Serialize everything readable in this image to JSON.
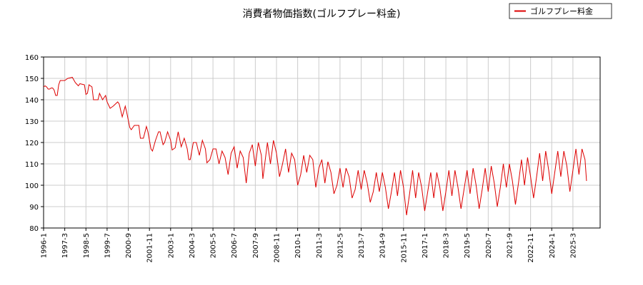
{
  "chart_data": {
    "type": "line",
    "title": "消費者物価指数(ゴルフプレー料金)",
    "legend_position": "top-right",
    "grid": true,
    "ylim": [
      80,
      160
    ],
    "yticks": [
      80,
      90,
      100,
      110,
      120,
      130,
      140,
      150,
      160
    ],
    "xlim": [
      "1996-01",
      "2026-09"
    ],
    "xticks": [
      "1996-1",
      "1997-3",
      "1998-5",
      "1999-7",
      "2000-9",
      "2001-11",
      "2003-1",
      "2004-3",
      "2005-5",
      "2006-7",
      "2007-9",
      "2008-11",
      "2010-1",
      "2011-3",
      "2012-5",
      "2013-7",
      "2014-9",
      "2015-11",
      "2017-1",
      "2018-3",
      "2019-5",
      "2020-7",
      "2021-9",
      "2022-11",
      "2024-1",
      "2025-3"
    ],
    "line_color": "#dd0000",
    "series": [
      {
        "name": "ゴルフプレー料金",
        "anchors": [
          [
            "1996-01",
            146
          ],
          [
            "1996-02",
            146.5
          ],
          [
            "1996-03",
            146
          ],
          [
            "1996-04",
            145
          ],
          [
            "1996-05",
            145
          ],
          [
            "1996-06",
            145.5
          ],
          [
            "1996-07",
            145.5
          ],
          [
            "1996-08",
            144.5
          ],
          [
            "1996-09",
            142
          ],
          [
            "1996-10",
            142
          ],
          [
            "1996-11",
            147
          ],
          [
            "1996-12",
            149
          ],
          [
            "1997-03",
            149
          ],
          [
            "1997-05",
            150
          ],
          [
            "1997-08",
            150.5
          ],
          [
            "1997-10",
            148
          ],
          [
            "1997-12",
            146.5
          ],
          [
            "1998-01",
            147.5
          ],
          [
            "1998-04",
            147
          ],
          [
            "1998-05",
            142.5
          ],
          [
            "1998-06",
            143
          ],
          [
            "1998-07",
            147
          ],
          [
            "1998-09",
            146
          ],
          [
            "1998-10",
            140
          ],
          [
            "1998-11",
            140
          ],
          [
            "1999-01",
            140
          ],
          [
            "1999-02",
            143
          ],
          [
            "1999-04",
            140
          ],
          [
            "1999-06",
            142
          ],
          [
            "1999-07",
            139
          ],
          [
            "1999-09",
            136
          ],
          [
            "1999-11",
            137
          ],
          [
            "2000-02",
            139
          ],
          [
            "2000-03",
            138
          ],
          [
            "2000-05",
            132
          ],
          [
            "2000-07",
            137
          ],
          [
            "2000-08",
            134
          ],
          [
            "2000-10",
            127
          ],
          [
            "2000-11",
            126
          ],
          [
            "2001-01",
            128
          ],
          [
            "2001-04",
            128
          ],
          [
            "2001-05",
            122
          ],
          [
            "2001-07",
            122
          ],
          [
            "2001-09",
            127.5
          ],
          [
            "2001-10",
            125
          ],
          [
            "2001-12",
            117
          ],
          [
            "2002-01",
            116
          ],
          [
            "2002-03",
            121
          ],
          [
            "2002-05",
            125
          ],
          [
            "2002-06",
            125
          ],
          [
            "2002-08",
            119
          ],
          [
            "2002-09",
            120
          ],
          [
            "2002-11",
            125
          ],
          [
            "2003-01",
            121
          ],
          [
            "2003-02",
            116.5
          ],
          [
            "2003-04",
            117.5
          ],
          [
            "2003-06",
            125
          ],
          [
            "2003-08",
            118
          ],
          [
            "2003-10",
            122
          ],
          [
            "2003-12",
            117
          ],
          [
            "2004-01",
            112
          ],
          [
            "2004-02",
            112
          ],
          [
            "2004-04",
            120
          ],
          [
            "2004-06",
            120
          ],
          [
            "2004-08",
            114
          ],
          [
            "2004-10",
            121
          ],
          [
            "2004-12",
            117
          ],
          [
            "2005-01",
            110.5
          ],
          [
            "2005-03",
            112
          ],
          [
            "2005-05",
            117
          ],
          [
            "2005-07",
            117
          ],
          [
            "2005-09",
            110
          ],
          [
            "2005-11",
            116
          ],
          [
            "2006-01",
            113
          ],
          [
            "2006-03",
            105
          ],
          [
            "2006-05",
            115
          ],
          [
            "2006-07",
            118
          ],
          [
            "2006-09",
            108
          ],
          [
            "2006-11",
            116
          ],
          [
            "2007-01",
            113
          ],
          [
            "2007-03",
            101
          ],
          [
            "2007-05",
            115
          ],
          [
            "2007-07",
            119
          ],
          [
            "2007-09",
            109
          ],
          [
            "2007-11",
            120
          ],
          [
            "2008-01",
            114
          ],
          [
            "2008-02",
            103
          ],
          [
            "2008-05",
            120
          ],
          [
            "2008-07",
            110
          ],
          [
            "2008-09",
            121
          ],
          [
            "2008-11",
            115
          ],
          [
            "2009-01",
            104
          ],
          [
            "2009-03",
            110
          ],
          [
            "2009-05",
            117
          ],
          [
            "2009-07",
            106
          ],
          [
            "2009-09",
            115
          ],
          [
            "2009-11",
            112
          ],
          [
            "2010-01",
            100
          ],
          [
            "2010-03",
            105
          ],
          [
            "2010-05",
            114
          ],
          [
            "2010-07",
            106
          ],
          [
            "2010-09",
            114
          ],
          [
            "2010-11",
            112
          ],
          [
            "2011-01",
            99
          ],
          [
            "2011-03",
            108
          ],
          [
            "2011-05",
            112
          ],
          [
            "2011-07",
            101
          ],
          [
            "2011-09",
            111
          ],
          [
            "2011-11",
            106
          ],
          [
            "2012-01",
            96
          ],
          [
            "2012-03",
            100
          ],
          [
            "2012-05",
            108
          ],
          [
            "2012-07",
            99
          ],
          [
            "2012-09",
            108
          ],
          [
            "2012-11",
            104
          ],
          [
            "2013-01",
            94
          ],
          [
            "2013-03",
            98
          ],
          [
            "2013-05",
            107
          ],
          [
            "2013-07",
            98
          ],
          [
            "2013-09",
            107
          ],
          [
            "2013-11",
            101
          ],
          [
            "2014-01",
            92
          ],
          [
            "2014-03",
            97
          ],
          [
            "2014-05",
            106
          ],
          [
            "2014-07",
            97
          ],
          [
            "2014-09",
            106
          ],
          [
            "2014-11",
            99
          ],
          [
            "2015-01",
            89
          ],
          [
            "2015-03",
            97
          ],
          [
            "2015-05",
            106
          ],
          [
            "2015-07",
            95
          ],
          [
            "2015-09",
            107
          ],
          [
            "2015-11",
            99
          ],
          [
            "2016-01",
            86
          ],
          [
            "2016-03",
            96
          ],
          [
            "2016-05",
            107
          ],
          [
            "2016-07",
            94
          ],
          [
            "2016-09",
            106
          ],
          [
            "2016-11",
            99
          ],
          [
            "2017-01",
            88
          ],
          [
            "2017-03",
            97
          ],
          [
            "2017-05",
            106
          ],
          [
            "2017-07",
            94
          ],
          [
            "2017-09",
            106
          ],
          [
            "2017-11",
            99
          ],
          [
            "2018-01",
            88
          ],
          [
            "2018-03",
            97
          ],
          [
            "2018-05",
            107
          ],
          [
            "2018-07",
            95
          ],
          [
            "2018-09",
            107
          ],
          [
            "2018-11",
            99
          ],
          [
            "2019-01",
            89
          ],
          [
            "2019-03",
            98
          ],
          [
            "2019-05",
            107
          ],
          [
            "2019-07",
            96
          ],
          [
            "2019-09",
            108
          ],
          [
            "2019-11",
            100
          ],
          [
            "2020-01",
            89
          ],
          [
            "2020-03",
            98
          ],
          [
            "2020-05",
            108
          ],
          [
            "2020-07",
            97
          ],
          [
            "2020-09",
            109
          ],
          [
            "2020-11",
            101
          ],
          [
            "2021-01",
            90
          ],
          [
            "2021-03",
            99
          ],
          [
            "2021-05",
            110
          ],
          [
            "2021-07",
            99
          ],
          [
            "2021-09",
            110
          ],
          [
            "2021-11",
            102
          ],
          [
            "2022-01",
            91
          ],
          [
            "2022-03",
            101
          ],
          [
            "2022-05",
            112
          ],
          [
            "2022-07",
            100
          ],
          [
            "2022-09",
            113
          ],
          [
            "2022-11",
            104
          ],
          [
            "2023-01",
            94
          ],
          [
            "2023-03",
            104
          ],
          [
            "2023-05",
            115
          ],
          [
            "2023-07",
            102
          ],
          [
            "2023-09",
            116
          ],
          [
            "2023-11",
            107
          ],
          [
            "2024-01",
            96
          ],
          [
            "2024-03",
            106
          ],
          [
            "2024-05",
            116
          ],
          [
            "2024-07",
            104
          ],
          [
            "2024-09",
            116
          ],
          [
            "2024-11",
            109
          ],
          [
            "2025-01",
            97
          ],
          [
            "2025-03",
            107
          ],
          [
            "2025-05",
            117
          ],
          [
            "2025-07",
            105
          ],
          [
            "2025-09",
            117
          ],
          [
            "2025-11",
            112
          ],
          [
            "2025-12",
            102
          ]
        ]
      }
    ]
  }
}
